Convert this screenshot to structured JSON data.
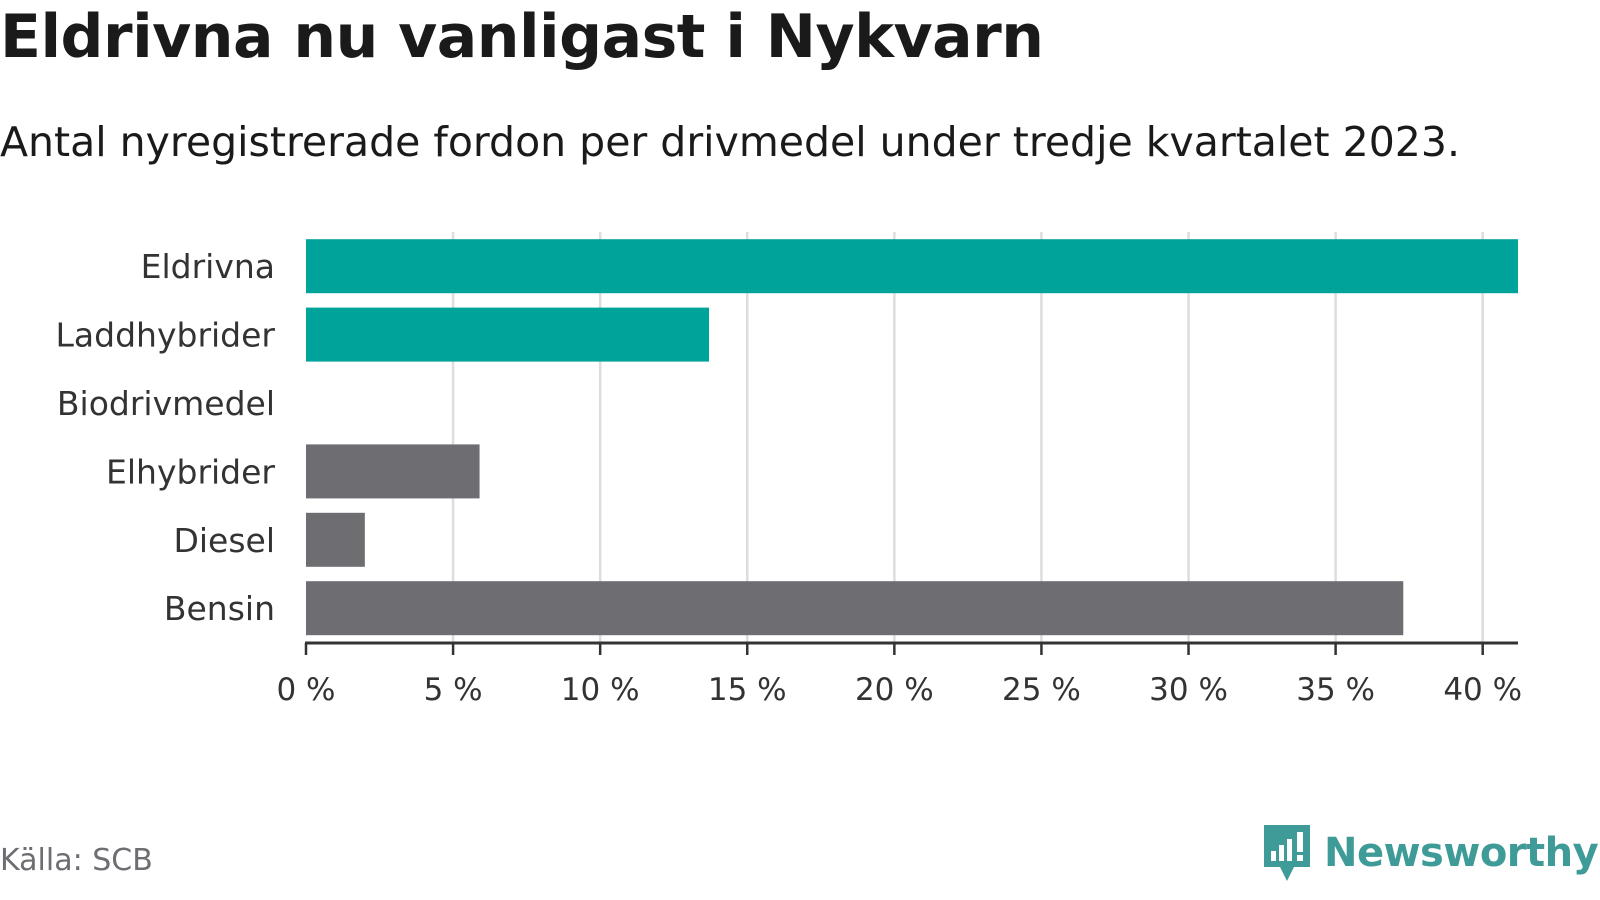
{
  "header": {
    "title": "Eldrivna nu vanligast i Nykvarn",
    "subtitle": "Antal nyregistrerade fordon per drivmedel under tredje kvartalet 2023."
  },
  "chart_data": {
    "type": "bar",
    "orientation": "horizontal",
    "title": "",
    "xlabel": "",
    "ylabel": "",
    "categories": [
      "Eldrivna",
      "Laddhybrider",
      "Biodrivmedel",
      "Elhybrider",
      "Diesel",
      "Bensin"
    ],
    "values": [
      41.2,
      13.7,
      0,
      5.9,
      2.0,
      37.3
    ],
    "bar_colors": [
      "#00a39a",
      "#00a39a",
      "#00a39a",
      "#6e6d72",
      "#6e6d72",
      "#6e6d72"
    ],
    "xlim": [
      0,
      41.2
    ],
    "x_ticks": [
      0,
      5,
      10,
      15,
      20,
      25,
      30,
      35,
      40
    ],
    "x_tick_labels": [
      "0 %",
      "5 %",
      "10 %",
      "15 %",
      "20 %",
      "25 %",
      "30 %",
      "35 %",
      "40 %"
    ],
    "grid": true,
    "gridline_color": "#dddddd",
    "axis_color": "#333333"
  },
  "footer": {
    "source": "Källa: SCB",
    "brand": "Newsworthy",
    "brand_color": "#3e9b97",
    "brand_icon": "newsworthy-logo-icon"
  }
}
